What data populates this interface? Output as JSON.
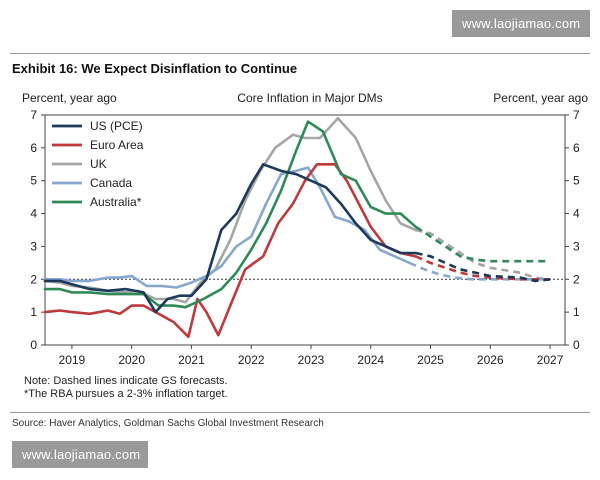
{
  "watermark_text": "www.laojiamao.com",
  "exhibit_title": "Exhibit 16: We Expect Disinflation to Continue",
  "source": "Source: Haver Analytics, Goldman Sachs Global Investment Research",
  "chart_data": {
    "type": "line",
    "title": "Core Inflation in Major DMs",
    "ylabel_left": "Percent, year ago",
    "ylabel_right": "Percent, year ago",
    "xlabel": "",
    "xlim": [
      2018.55,
      2027.25
    ],
    "ylim": [
      0,
      7
    ],
    "x_ticks": [
      2019,
      2020,
      2021,
      2022,
      2023,
      2024,
      2025,
      2026,
      2027
    ],
    "x_tick_labels": [
      "2019",
      "2020",
      "2021",
      "2022",
      "2023",
      "2024",
      "2025",
      "2026",
      "2027"
    ],
    "y_ticks": [
      0,
      1,
      2,
      3,
      4,
      5,
      6,
      7
    ],
    "y_tick_labels": [
      "0",
      "1",
      "2",
      "3",
      "4",
      "5",
      "6",
      "7"
    ],
    "reference_line": 2,
    "notes": [
      "Note: Dashed lines indicate GS forecasts.",
      "*The RBA pursues a 2-3% inflation target."
    ],
    "legend_position": "top-left",
    "colors": {
      "us": "#1b3a5c",
      "euro": "#c0393b",
      "uk": "#a6a6a6",
      "canada": "#86a8cf",
      "australia": "#2e8b57"
    },
    "series": [
      {
        "key": "us",
        "name": "US (PCE)",
        "actual": [
          [
            2018.55,
            1.95
          ],
          [
            2018.8,
            1.95
          ],
          [
            2019.0,
            1.85
          ],
          [
            2019.3,
            1.7
          ],
          [
            2019.6,
            1.65
          ],
          [
            2019.9,
            1.7
          ],
          [
            2020.2,
            1.6
          ],
          [
            2020.4,
            1.0
          ],
          [
            2020.6,
            1.4
          ],
          [
            2020.8,
            1.5
          ],
          [
            2021.0,
            1.5
          ],
          [
            2021.25,
            2.0
          ],
          [
            2021.5,
            3.5
          ],
          [
            2021.75,
            4.0
          ],
          [
            2022.0,
            4.9
          ],
          [
            2022.2,
            5.5
          ],
          [
            2022.5,
            5.3
          ],
          [
            2022.75,
            5.2
          ],
          [
            2023.0,
            5.0
          ],
          [
            2023.25,
            4.8
          ],
          [
            2023.5,
            4.3
          ],
          [
            2023.75,
            3.7
          ],
          [
            2024.0,
            3.2
          ],
          [
            2024.25,
            3.0
          ],
          [
            2024.5,
            2.8
          ],
          [
            2024.75,
            2.8
          ]
        ],
        "forecast": [
          [
            2024.75,
            2.8
          ],
          [
            2025.0,
            2.7
          ],
          [
            2025.25,
            2.5
          ],
          [
            2025.5,
            2.3
          ],
          [
            2025.75,
            2.2
          ],
          [
            2026.0,
            2.1
          ],
          [
            2026.5,
            2.05
          ],
          [
            2026.75,
            1.95
          ],
          [
            2027.0,
            2.0
          ]
        ]
      },
      {
        "key": "euro",
        "name": "Euro Area",
        "actual": [
          [
            2018.55,
            1.0
          ],
          [
            2018.8,
            1.05
          ],
          [
            2019.0,
            1.0
          ],
          [
            2019.3,
            0.95
          ],
          [
            2019.6,
            1.05
          ],
          [
            2019.8,
            0.95
          ],
          [
            2020.0,
            1.2
          ],
          [
            2020.2,
            1.2
          ],
          [
            2020.5,
            0.9
          ],
          [
            2020.7,
            0.7
          ],
          [
            2020.95,
            0.25
          ],
          [
            2021.1,
            1.4
          ],
          [
            2021.25,
            1.0
          ],
          [
            2021.45,
            0.3
          ],
          [
            2021.65,
            1.2
          ],
          [
            2021.9,
            2.3
          ],
          [
            2022.2,
            2.7
          ],
          [
            2022.45,
            3.7
          ],
          [
            2022.7,
            4.3
          ],
          [
            2022.9,
            5.0
          ],
          [
            2023.1,
            5.5
          ],
          [
            2023.4,
            5.5
          ],
          [
            2023.6,
            5.0
          ],
          [
            2023.8,
            4.3
          ],
          [
            2024.0,
            3.6
          ],
          [
            2024.25,
            3.0
          ],
          [
            2024.5,
            2.8
          ],
          [
            2024.75,
            2.7
          ]
        ],
        "forecast": [
          [
            2024.75,
            2.7
          ],
          [
            2025.0,
            2.5
          ],
          [
            2025.25,
            2.35
          ],
          [
            2025.5,
            2.2
          ],
          [
            2025.75,
            2.1
          ],
          [
            2026.0,
            2.05
          ],
          [
            2026.5,
            2.0
          ],
          [
            2027.0,
            2.0
          ]
        ]
      },
      {
        "key": "uk",
        "name": "UK",
        "actual": [
          [
            2018.55,
            1.95
          ],
          [
            2018.8,
            1.9
          ],
          [
            2019.0,
            1.8
          ],
          [
            2019.3,
            1.75
          ],
          [
            2019.6,
            1.65
          ],
          [
            2019.9,
            1.6
          ],
          [
            2020.1,
            1.65
          ],
          [
            2020.4,
            1.4
          ],
          [
            2020.7,
            1.4
          ],
          [
            2020.9,
            1.3
          ],
          [
            2021.15,
            1.9
          ],
          [
            2021.4,
            2.3
          ],
          [
            2021.65,
            3.2
          ],
          [
            2021.9,
            4.4
          ],
          [
            2022.15,
            5.3
          ],
          [
            2022.4,
            6.0
          ],
          [
            2022.7,
            6.4
          ],
          [
            2022.9,
            6.3
          ],
          [
            2023.15,
            6.3
          ],
          [
            2023.45,
            6.9
          ],
          [
            2023.75,
            6.3
          ],
          [
            2024.0,
            5.3
          ],
          [
            2024.25,
            4.4
          ],
          [
            2024.5,
            3.7
          ],
          [
            2024.75,
            3.5
          ]
        ],
        "forecast": [
          [
            2024.75,
            3.5
          ],
          [
            2025.0,
            3.4
          ],
          [
            2025.25,
            3.1
          ],
          [
            2025.5,
            2.8
          ],
          [
            2025.75,
            2.5
          ],
          [
            2026.0,
            2.35
          ],
          [
            2026.5,
            2.2
          ],
          [
            2026.75,
            2.05
          ],
          [
            2027.0,
            2.0
          ]
        ]
      },
      {
        "key": "canada",
        "name": "Canada",
        "actual": [
          [
            2018.55,
            2.0
          ],
          [
            2018.8,
            2.0
          ],
          [
            2019.0,
            1.95
          ],
          [
            2019.3,
            1.95
          ],
          [
            2019.6,
            2.05
          ],
          [
            2019.8,
            2.05
          ],
          [
            2020.0,
            2.1
          ],
          [
            2020.25,
            1.8
          ],
          [
            2020.5,
            1.8
          ],
          [
            2020.75,
            1.75
          ],
          [
            2021.0,
            1.9
          ],
          [
            2021.25,
            2.1
          ],
          [
            2021.5,
            2.4
          ],
          [
            2021.75,
            3.0
          ],
          [
            2022.0,
            3.3
          ],
          [
            2022.25,
            4.3
          ],
          [
            2022.5,
            5.2
          ],
          [
            2022.75,
            5.3
          ],
          [
            2022.95,
            5.4
          ],
          [
            2023.15,
            4.8
          ],
          [
            2023.4,
            3.9
          ],
          [
            2023.65,
            3.75
          ],
          [
            2023.9,
            3.5
          ],
          [
            2024.15,
            2.9
          ],
          [
            2024.4,
            2.7
          ],
          [
            2024.65,
            2.5
          ]
        ],
        "forecast": [
          [
            2024.65,
            2.5
          ],
          [
            2024.9,
            2.3
          ],
          [
            2025.15,
            2.15
          ],
          [
            2025.4,
            2.05
          ],
          [
            2025.7,
            2.0
          ],
          [
            2026.0,
            2.0
          ],
          [
            2026.5,
            2.0
          ],
          [
            2027.0,
            2.0
          ]
        ]
      },
      {
        "key": "australia",
        "name": "Australia*",
        "actual": [
          [
            2018.55,
            1.7
          ],
          [
            2018.8,
            1.7
          ],
          [
            2019.0,
            1.6
          ],
          [
            2019.3,
            1.6
          ],
          [
            2019.6,
            1.55
          ],
          [
            2019.9,
            1.55
          ],
          [
            2020.2,
            1.55
          ],
          [
            2020.45,
            1.2
          ],
          [
            2020.7,
            1.2
          ],
          [
            2020.9,
            1.15
          ],
          [
            2021.2,
            1.4
          ],
          [
            2021.5,
            1.7
          ],
          [
            2021.75,
            2.2
          ],
          [
            2022.0,
            2.9
          ],
          [
            2022.25,
            3.7
          ],
          [
            2022.5,
            4.7
          ],
          [
            2022.75,
            5.9
          ],
          [
            2022.95,
            6.8
          ],
          [
            2023.2,
            6.5
          ],
          [
            2023.5,
            5.2
          ],
          [
            2023.75,
            5.0
          ],
          [
            2024.0,
            4.2
          ],
          [
            2024.25,
            4.0
          ],
          [
            2024.5,
            4.0
          ],
          [
            2024.75,
            3.6
          ]
        ],
        "forecast": [
          [
            2024.75,
            3.6
          ],
          [
            2025.0,
            3.3
          ],
          [
            2025.25,
            3.0
          ],
          [
            2025.5,
            2.7
          ],
          [
            2025.75,
            2.6
          ],
          [
            2026.0,
            2.55
          ],
          [
            2026.5,
            2.55
          ],
          [
            2027.0,
            2.55
          ]
        ]
      }
    ]
  }
}
